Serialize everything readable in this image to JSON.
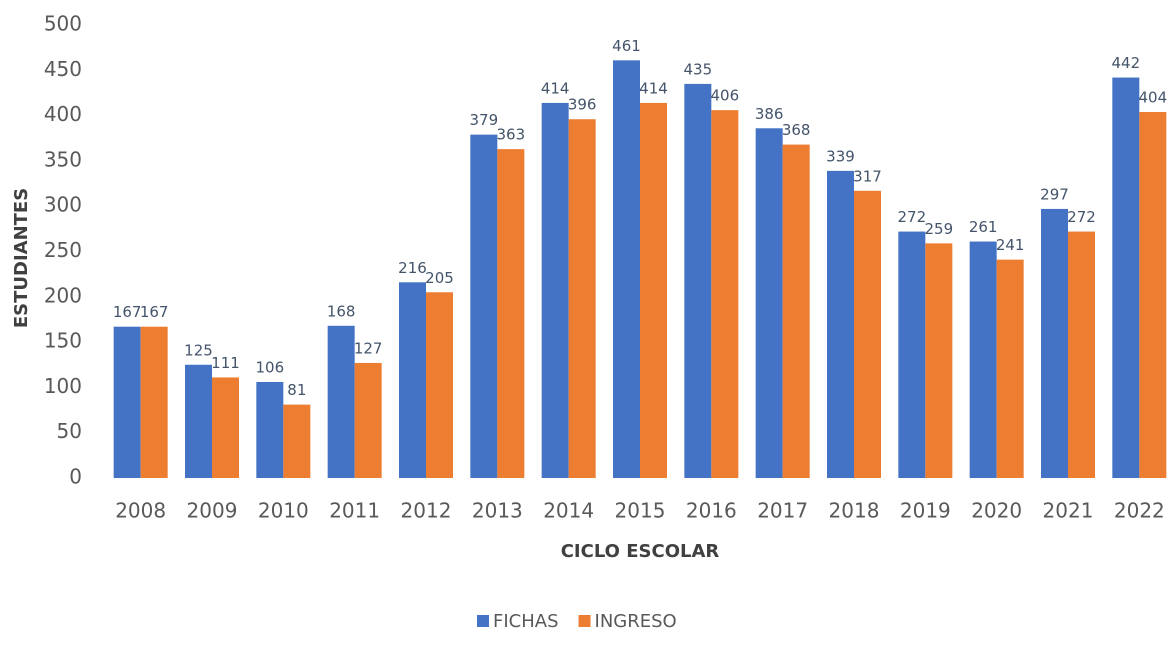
{
  "chart_data": {
    "type": "bar",
    "x_label": "CICLO ESCOLAR",
    "y_label": "ESTUDIANTES",
    "categories": [
      "2008",
      "2009",
      "2010",
      "2011",
      "2012",
      "2013",
      "2014",
      "2015",
      "2016",
      "2017",
      "2018",
      "2019",
      "2020",
      "2021",
      "2022"
    ],
    "series": [
      {
        "name": "FICHAS",
        "color": "#4472c4",
        "values": [
          167,
          125,
          106,
          168,
          216,
          379,
          414,
          461,
          435,
          386,
          339,
          272,
          261,
          297,
          442
        ]
      },
      {
        "name": "INGRESO",
        "color": "#ed7d31",
        "values": [
          167,
          111,
          81,
          127,
          205,
          363,
          396,
          414,
          406,
          368,
          317,
          259,
          241,
          272,
          404
        ]
      }
    ],
    "ylim": [
      0,
      500
    ],
    "yticks": [
      0,
      50,
      100,
      150,
      200,
      250,
      300,
      350,
      400,
      450,
      500
    ],
    "grid": false,
    "legend": "bottom"
  }
}
